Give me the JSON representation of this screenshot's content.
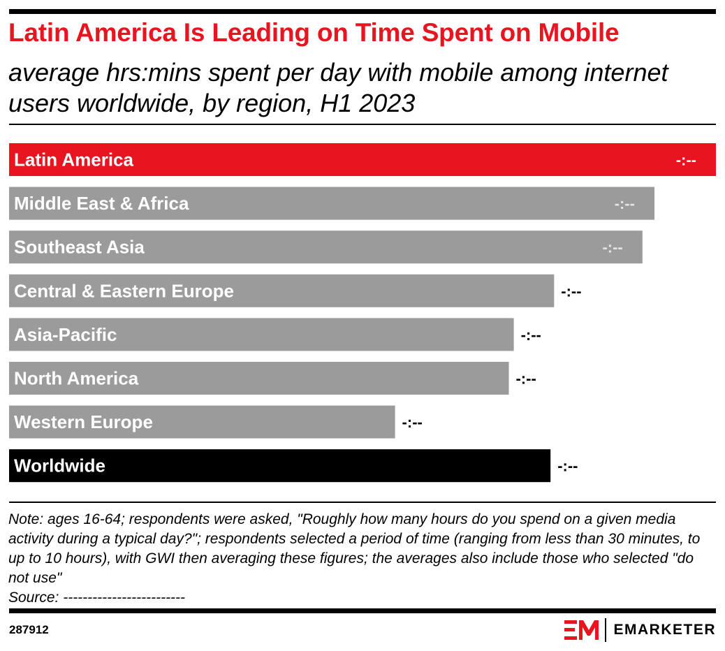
{
  "header": {
    "title": "Latin America Is Leading on Time Spent on Mobile",
    "subtitle": "average hrs:mins spent per day with mobile among internet users worldwide, by region, H1 2023"
  },
  "chart_data": {
    "type": "bar",
    "orientation": "horizontal",
    "categories": [
      "Latin America",
      "Middle East & Africa",
      "Southeast Asia",
      "Central & Eastern Europe",
      "Asia-Pacific",
      "North America",
      "Western Europe",
      "Worldwide"
    ],
    "values": [
      100,
      91.3,
      89.6,
      77.1,
      71.4,
      70.7,
      54.6,
      76.6
    ],
    "value_labels": [
      "-:--",
      "-:--",
      "-:--",
      "-:--",
      "-:--",
      "-:--",
      "-:--",
      "-:--"
    ],
    "bar_colors": [
      "#e8141f",
      "#9b9b9b",
      "#9b9b9b",
      "#9b9b9b",
      "#9b9b9b",
      "#9b9b9b",
      "#9b9b9b",
      "#000000"
    ],
    "value_label_inside_colors": [
      "#ffffff",
      "#e5e5e5",
      "#e5e5e5",
      "#000000",
      "#000000",
      "#000000",
      "#000000",
      "#000000"
    ],
    "xlim": [
      0,
      100
    ],
    "grid": false,
    "legend": "none"
  },
  "footer": {
    "note": "Note: ages 16-64; respondents were asked, \"Roughly how many hours do you spend on a given media activity during a typical day?\"; respondents selected a period of time (ranging from less than 30 minutes, to up to 10 hours), with GWI then averaging these figures; the averages also include those who selected \"do not use\"",
    "source": "Source: -------------------------",
    "chart_id": "287912",
    "brand": "EMARKETER"
  },
  "colors": {
    "accent": "#e8141f",
    "bar_default": "#9b9b9b",
    "bar_total": "#000000"
  }
}
